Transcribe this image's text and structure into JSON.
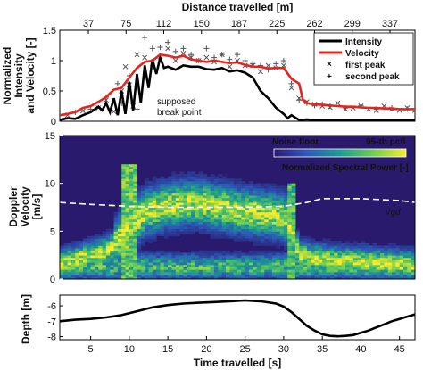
{
  "chart_data": [
    {
      "type": "line",
      "ylabel": "Normalized\nIntensity\nand Velocity [-]",
      "top_xlabel": "Distance travelled [m]",
      "top_xticks": [
        "37",
        "75",
        "112",
        "150",
        "187",
        "225",
        "262",
        "299",
        "337"
      ],
      "xlim": [
        1,
        47
      ],
      "ylim": [
        0,
        1.5
      ],
      "yticks": [
        "0",
        "0.5",
        "1",
        "1.5"
      ],
      "annotation": "supposed\nbreak point",
      "legend_position": "top-right",
      "series": [
        {
          "name": "Intensity",
          "color": "#000000",
          "x": [
            1,
            2,
            3,
            4,
            5,
            6,
            6.5,
            7,
            7.5,
            8,
            8.5,
            9,
            9.5,
            10,
            10.5,
            11,
            11.5,
            12,
            12.5,
            13,
            13.5,
            14,
            14.5,
            15,
            16,
            17,
            18,
            19,
            20,
            21,
            22,
            23,
            24,
            25,
            26,
            27,
            28,
            29,
            30,
            30.5,
            31,
            32,
            33,
            34,
            35,
            36,
            37,
            38,
            39,
            40,
            41,
            42,
            43,
            44,
            45,
            46,
            47
          ],
          "y": [
            0.02,
            0.05,
            0.04,
            0.1,
            0.15,
            0.24,
            0.18,
            0.3,
            0.15,
            0.38,
            0.1,
            0.5,
            0.12,
            0.65,
            0.18,
            0.78,
            0.3,
            0.92,
            0.55,
            1.02,
            0.78,
            1.05,
            0.88,
            0.9,
            0.85,
            0.92,
            0.9,
            0.9,
            0.86,
            0.85,
            0.88,
            0.82,
            0.84,
            0.8,
            0.72,
            0.5,
            0.38,
            0.22,
            0.12,
            0.05,
            0.1,
            0.02,
            0.03,
            0.02,
            0.02,
            0.02,
            0.02,
            0.02,
            0.02,
            0.02,
            0.02,
            0.02,
            0.02,
            0.02,
            0.02,
            0.02,
            0.02
          ]
        },
        {
          "name": "Velocity",
          "color": "#e8231e",
          "x": [
            1,
            2,
            3,
            4,
            5,
            6,
            7,
            8,
            9,
            10,
            11,
            12,
            13,
            14,
            15,
            16,
            17,
            18,
            19,
            20,
            21,
            22,
            23,
            24,
            25,
            26,
            27,
            28,
            29,
            30,
            31,
            32,
            32.5,
            33,
            34,
            35,
            36,
            37,
            38,
            39,
            40,
            41,
            42,
            43,
            44,
            45,
            46,
            47
          ],
          "y": [
            0.1,
            0.12,
            0.15,
            0.22,
            0.25,
            0.32,
            0.4,
            0.52,
            0.55,
            0.72,
            0.88,
            0.98,
            1.0,
            1.1,
            1.08,
            1.05,
            1.08,
            1.02,
            1.0,
            0.98,
            1.0,
            0.98,
            0.96,
            0.97,
            0.93,
            0.9,
            0.9,
            0.87,
            0.88,
            0.88,
            0.7,
            0.62,
            0.35,
            0.3,
            0.28,
            0.27,
            0.26,
            0.25,
            0.24,
            0.24,
            0.23,
            0.22,
            0.22,
            0.21,
            0.21,
            0.2,
            0.2,
            0.2
          ]
        },
        {
          "name": "first peak",
          "color": "#555555",
          "marker": "x",
          "x": [
            2,
            4,
            6,
            7,
            8,
            9,
            9.5,
            10,
            10.5,
            11,
            12,
            13,
            14,
            15,
            16,
            17,
            18,
            19,
            20,
            21,
            22,
            23,
            24,
            25,
            26,
            27,
            28,
            29,
            30,
            31,
            32,
            33,
            34,
            35,
            36,
            37,
            38,
            39,
            40,
            41,
            42,
            43,
            44,
            45,
            46,
            47
          ],
          "y": [
            0.1,
            0.17,
            0.22,
            0.35,
            0.16,
            0.5,
            0.9,
            0.6,
            0.25,
            1.1,
            1.05,
            0.95,
            1.0,
            1.2,
            1.0,
            1.12,
            1.05,
            1.0,
            1.05,
            0.98,
            1.1,
            0.9,
            1.0,
            0.92,
            0.92,
            0.82,
            0.92,
            0.88,
            0.92,
            0.55,
            0.38,
            0.32,
            0.28,
            0.25,
            0.23,
            0.3,
            0.2,
            0.22,
            0.25,
            0.2,
            0.18,
            0.25,
            0.2,
            0.18,
            0.22,
            0.18
          ]
        },
        {
          "name": "second peak",
          "color": "#555555",
          "marker": "+",
          "x": [
            3,
            5,
            7,
            8.5,
            9,
            10,
            11,
            12,
            13,
            14,
            15,
            16,
            17,
            18,
            19,
            20,
            21,
            22,
            23,
            24,
            25,
            26,
            27,
            28,
            29,
            30,
            31,
            32,
            33,
            34,
            35,
            36,
            38,
            40,
            42,
            44,
            46
          ],
          "y": [
            0.15,
            0.2,
            0.4,
            0.62,
            0.3,
            0.75,
            0.2,
            1.38,
            1.2,
            1.22,
            1.3,
            1.15,
            1.2,
            1.1,
            1.0,
            1.2,
            1.05,
            1.1,
            1.02,
            1.1,
            1.0,
            0.95,
            0.92,
            0.85,
            0.95,
            1.0,
            0.62,
            0.35,
            0.3,
            0.26,
            0.28,
            0.25,
            0.22,
            0.26,
            0.2,
            0.22,
            0.2
          ]
        }
      ]
    },
    {
      "type": "heatmap",
      "ylabel": "Doppler\nVelocity\n[m/s]",
      "xlim": [
        1,
        47
      ],
      "ylim": [
        0,
        15
      ],
      "yticks": [
        "0",
        "5",
        "10",
        "15"
      ],
      "colormap": [
        "#2a1a6e",
        "#2d59b8",
        "#1b9c8e",
        "#6fcf52",
        "#f7ec2c"
      ],
      "colorbar_min_label": "Noise floor",
      "colorbar_max_label": "95-th pctl",
      "colorbar_label": "Normalized Spectral Power [-]",
      "reference_line_label": "√gd",
      "reference_line": {
        "x": [
          1,
          5,
          10,
          15,
          20,
          25,
          30,
          33,
          35,
          40,
          45,
          47
        ],
        "y": [
          8.0,
          7.8,
          7.6,
          7.5,
          7.5,
          7.5,
          7.6,
          8.0,
          8.4,
          8.4,
          8.2,
          8.0
        ]
      },
      "ridge": {
        "x": [
          1,
          3,
          5,
          7,
          8,
          9,
          10,
          11,
          12,
          14,
          16,
          18,
          20,
          22,
          24,
          26,
          28,
          30,
          31,
          32,
          34,
          36,
          40,
          44,
          47
        ],
        "y": [
          1.5,
          2.0,
          2.5,
          3.0,
          3.5,
          4.5,
          5.5,
          6.2,
          7.0,
          7.5,
          7.8,
          8.0,
          7.8,
          7.5,
          7.2,
          7.0,
          6.8,
          6.5,
          5.8,
          2.5,
          2.2,
          2.0,
          1.8,
          1.6,
          1.5
        ]
      }
    },
    {
      "type": "line",
      "xlabel": "Time travelled [s]",
      "ylabel": "Depth [m]",
      "xlim": [
        1,
        47
      ],
      "ylim": [
        -8.2,
        -5.3
      ],
      "xticks": [
        "5",
        "10",
        "15",
        "20",
        "25",
        "30",
        "35",
        "40",
        "45"
      ],
      "yticks": [
        "-6",
        "-7",
        "-8"
      ],
      "series": [
        {
          "name": "",
          "color": "#000000",
          "x": [
            1,
            3,
            5,
            7,
            9,
            11,
            13,
            15,
            17,
            19,
            21,
            23,
            25,
            27,
            29,
            30,
            31,
            32,
            33,
            34,
            35,
            36,
            37,
            38,
            39,
            40,
            41,
            42,
            43,
            44,
            45,
            46,
            47
          ],
          "y": [
            -7.0,
            -6.9,
            -6.85,
            -6.75,
            -6.6,
            -6.35,
            -6.1,
            -5.95,
            -5.85,
            -5.8,
            -5.75,
            -5.7,
            -5.65,
            -5.7,
            -5.85,
            -6.05,
            -6.4,
            -6.85,
            -7.3,
            -7.6,
            -7.85,
            -7.95,
            -7.98,
            -7.95,
            -7.9,
            -7.75,
            -7.6,
            -7.4,
            -7.2,
            -7.0,
            -6.85,
            -6.7,
            -6.55
          ]
        }
      ]
    }
  ]
}
